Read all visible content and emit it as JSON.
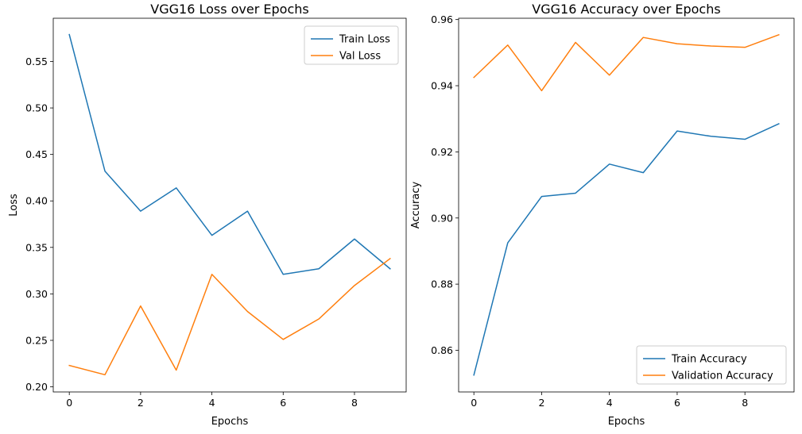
{
  "chart_data": [
    {
      "type": "line",
      "title": "VGG16 Loss over Epochs",
      "xlabel": "Epochs",
      "ylabel": "Loss",
      "xlim": [
        -0.45,
        9.45
      ],
      "ylim": [
        0.1945,
        0.5965
      ],
      "xticks": [
        0,
        2,
        4,
        6,
        8
      ],
      "xtick_labels": [
        "0",
        "2",
        "4",
        "6",
        "8"
      ],
      "yticks": [
        0.2,
        0.25,
        0.3,
        0.35,
        0.4,
        0.45,
        0.5,
        0.55
      ],
      "ytick_labels": [
        "0.20",
        "0.25",
        "0.30",
        "0.35",
        "0.40",
        "0.45",
        "0.50",
        "0.55"
      ],
      "x": [
        0,
        1,
        2,
        3,
        4,
        5,
        6,
        7,
        8,
        9
      ],
      "legend_position": "upper right",
      "series": [
        {
          "name": "Train Loss",
          "color": "#1f77b4",
          "values": [
            0.579,
            0.432,
            0.389,
            0.414,
            0.363,
            0.389,
            0.321,
            0.327,
            0.359,
            0.327
          ]
        },
        {
          "name": "Val Loss",
          "color": "#ff7f0e",
          "values": [
            0.223,
            0.213,
            0.287,
            0.218,
            0.321,
            0.281,
            0.251,
            0.273,
            0.309,
            0.338
          ]
        }
      ]
    },
    {
      "type": "line",
      "title": "VGG16 Accuracy over Epochs",
      "xlabel": "Epochs",
      "ylabel": "Accuracy",
      "xlim": [
        -0.45,
        9.45
      ],
      "ylim": [
        0.8474,
        0.9604
      ],
      "xticks": [
        0,
        2,
        4,
        6,
        8
      ],
      "xtick_labels": [
        "0",
        "2",
        "4",
        "6",
        "8"
      ],
      "yticks": [
        0.86,
        0.88,
        0.9,
        0.92,
        0.94,
        0.96
      ],
      "ytick_labels": [
        "0.86",
        "0.88",
        "0.90",
        "0.92",
        "0.94",
        "0.96"
      ],
      "x": [
        0,
        1,
        2,
        3,
        4,
        5,
        6,
        7,
        8,
        9
      ],
      "legend_position": "lower right",
      "series": [
        {
          "name": "Train Accuracy",
          "color": "#1f77b4",
          "values": [
            0.8525,
            0.8925,
            0.9065,
            0.9075,
            0.9163,
            0.9137,
            0.9263,
            0.9247,
            0.9238,
            0.9285
          ]
        },
        {
          "name": "Validation Accuracy",
          "color": "#ff7f0e",
          "values": [
            0.9425,
            0.9523,
            0.9385,
            0.9531,
            0.9432,
            0.9546,
            0.9527,
            0.952,
            0.9516,
            0.9554
          ]
        }
      ]
    }
  ]
}
